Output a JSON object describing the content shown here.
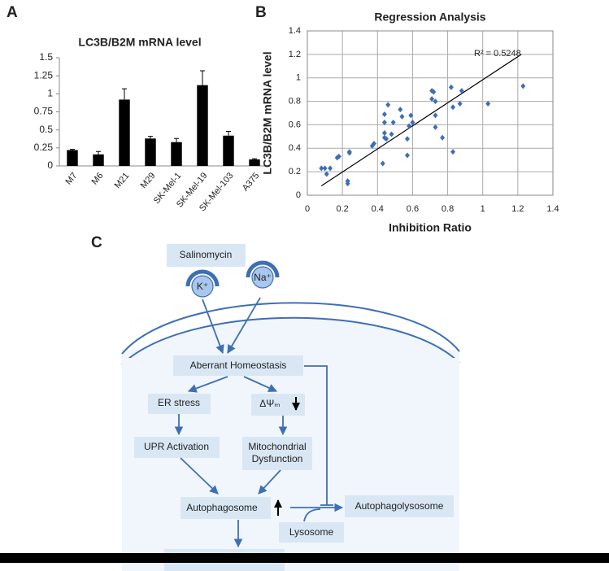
{
  "chart_data": [
    {
      "type": "bar",
      "panel": "A",
      "title": "LC3B/B2M mRNA level",
      "categories": [
        "M7",
        "M6",
        "M21",
        "M29",
        "SK-Mel-1",
        "SK-Mel-19",
        "SK-Mel-103",
        "A375"
      ],
      "values": [
        0.22,
        0.16,
        0.92,
        0.38,
        0.33,
        1.12,
        0.42,
        0.09
      ],
      "errors": [
        0.01,
        0.04,
        0.15,
        0.03,
        0.05,
        0.2,
        0.06,
        0.01
      ],
      "color": "#000000",
      "ylim": [
        0,
        1.5
      ],
      "yticks": [
        0,
        0.25,
        0.5,
        0.75,
        1,
        1.25,
        1.5
      ],
      "grid": false
    },
    {
      "type": "scatter",
      "panel": "B",
      "title": "Regression Analysis",
      "x_label": "Inhibition Ratio",
      "y_label": "LC3B/B2M mRNA level",
      "annotation": "R² = 0.5248",
      "x": [
        0.08,
        0.1,
        0.11,
        0.13,
        0.17,
        0.18,
        0.23,
        0.23,
        0.24,
        0.24,
        0.37,
        0.38,
        0.43,
        0.44,
        0.44,
        0.44,
        0.44,
        0.45,
        0.46,
        0.48,
        0.49,
        0.53,
        0.54,
        0.57,
        0.57,
        0.58,
        0.59,
        0.6,
        0.71,
        0.71,
        0.72,
        0.73,
        0.73,
        0.73,
        0.77,
        0.82,
        0.83,
        0.83,
        0.87,
        0.88,
        1.03,
        1.23
      ],
      "values": [
        0.23,
        0.23,
        0.18,
        0.23,
        0.32,
        0.33,
        0.1,
        0.12,
        0.36,
        0.37,
        0.42,
        0.44,
        0.27,
        0.53,
        0.49,
        0.62,
        0.69,
        0.48,
        0.77,
        0.52,
        0.62,
        0.73,
        0.67,
        0.34,
        0.48,
        0.59,
        0.68,
        0.62,
        0.82,
        0.89,
        0.88,
        0.8,
        0.68,
        0.58,
        0.49,
        0.92,
        0.75,
        0.37,
        0.78,
        0.89,
        0.78,
        0.93
      ],
      "color": "#3d6fb6",
      "trendline": {
        "x": [
          0.08,
          1.22
        ],
        "values": [
          0.08,
          1.2
        ],
        "color": "#000000"
      },
      "xlim": [
        0,
        1.4
      ],
      "xticks": [
        0,
        0.2,
        0.4,
        0.6,
        0.8,
        1,
        1.2,
        1.4
      ],
      "ylim": [
        0,
        1.4
      ],
      "yticks": [
        0,
        0.2,
        0.4,
        0.6,
        0.8,
        1,
        1.2,
        1.4
      ],
      "grid": true
    }
  ],
  "diagram": {
    "panel": "C",
    "nodes": [
      {
        "label": "Salinomycin"
      },
      {
        "label": "K⁺"
      },
      {
        "label": "Na⁺"
      },
      {
        "label": "Aberrant Homeostasis"
      },
      {
        "label": "ER stress"
      },
      {
        "label": "ΔΨₘ"
      },
      {
        "label": "UPR Activation"
      },
      {
        "label": "Mitochondrial"
      },
      {
        "label": "Dysfunction"
      },
      {
        "label": "Autophagosome"
      },
      {
        "label": "Lysosome"
      },
      {
        "label": "Autophagolysosome"
      }
    ]
  }
}
